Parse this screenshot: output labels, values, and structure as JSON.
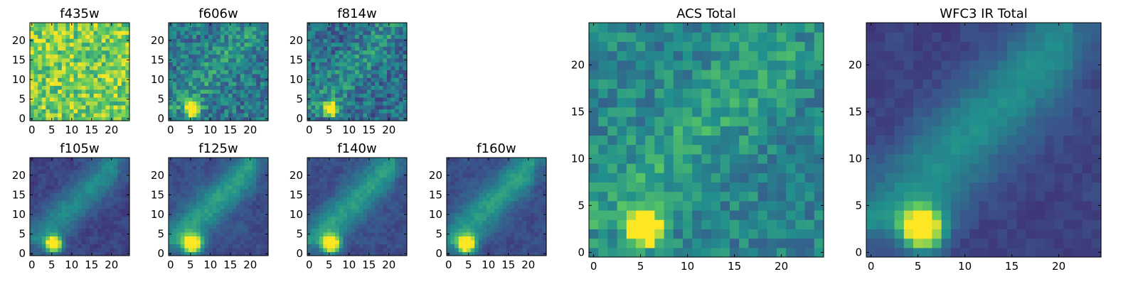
{
  "figure": {
    "colormap": "viridis",
    "palette": [
      "#440154",
      "#3b528b",
      "#21908d",
      "#5dc962",
      "#fde725"
    ],
    "axis_color": "#000000"
  },
  "chart_data": [
    {
      "type": "heatmap",
      "title": "f435w",
      "size": 25,
      "xlim": [
        0,
        24
      ],
      "ylim": [
        0,
        24
      ],
      "xticks": [
        0,
        5,
        10,
        15,
        20
      ],
      "yticks": [
        0,
        5,
        10,
        15,
        20
      ],
      "tick_labels_x": [
        "0",
        "5",
        "10",
        "15",
        "20"
      ],
      "tick_labels_y": [
        "0",
        "5",
        "10",
        "15",
        "20"
      ],
      "background_level": 0.78,
      "noise_level": 0.22,
      "diffuse_level": 0.0,
      "blur": 0,
      "sources": [],
      "seed": 11
    },
    {
      "type": "heatmap",
      "title": "f606w",
      "size": 25,
      "xlim": [
        0,
        24
      ],
      "ylim": [
        0,
        24
      ],
      "xticks": [
        0,
        5,
        10,
        15,
        20
      ],
      "yticks": [
        0,
        5,
        10,
        15,
        20
      ],
      "tick_labels_x": [
        "0",
        "5",
        "10",
        "15",
        "20"
      ],
      "tick_labels_y": [
        "0",
        "5",
        "10",
        "15",
        "20"
      ],
      "background_level": 0.4,
      "noise_level": 0.18,
      "diffuse_level": 0.14,
      "blur": 0,
      "sources": [
        {
          "x": 5.5,
          "y": 2.5,
          "amplitude": 1.0,
          "sigma": 1.2
        }
      ],
      "seed": 23
    },
    {
      "type": "heatmap",
      "title": "f814w",
      "size": 25,
      "xlim": [
        0,
        24
      ],
      "ylim": [
        0,
        24
      ],
      "xticks": [
        0,
        5,
        10,
        15,
        20
      ],
      "yticks": [
        0,
        5,
        10,
        15,
        20
      ],
      "tick_labels_x": [
        "0",
        "5",
        "10",
        "15",
        "20"
      ],
      "tick_labels_y": [
        "0",
        "5",
        "10",
        "15",
        "20"
      ],
      "background_level": 0.36,
      "noise_level": 0.18,
      "diffuse_level": 0.14,
      "blur": 0,
      "sources": [
        {
          "x": 5.5,
          "y": 2.5,
          "amplitude": 1.0,
          "sigma": 1.2
        }
      ],
      "seed": 37
    },
    {
      "type": "heatmap",
      "title": "f105w",
      "size": 25,
      "xlim": [
        0,
        24
      ],
      "ylim": [
        0,
        24
      ],
      "xticks": [
        0,
        5,
        10,
        15,
        20
      ],
      "yticks": [
        0,
        5,
        10,
        15,
        20
      ],
      "tick_labels_x": [
        "0",
        "5",
        "10",
        "15",
        "20"
      ],
      "tick_labels_y": [
        "0",
        "5",
        "10",
        "15",
        "20"
      ],
      "background_level": 0.2,
      "noise_level": 0.08,
      "diffuse_level": 0.28,
      "blur": 1,
      "sources": [
        {
          "x": 5.5,
          "y": 2.5,
          "amplitude": 1.0,
          "sigma": 1.4
        }
      ],
      "seed": 41
    },
    {
      "type": "heatmap",
      "title": "f125w",
      "size": 25,
      "xlim": [
        0,
        24
      ],
      "ylim": [
        0,
        24
      ],
      "xticks": [
        0,
        5,
        10,
        15,
        20
      ],
      "yticks": [
        0,
        5,
        10,
        15,
        20
      ],
      "tick_labels_x": [
        "0",
        "5",
        "10",
        "15",
        "20"
      ],
      "tick_labels_y": [
        "0",
        "5",
        "10",
        "15",
        "20"
      ],
      "background_level": 0.24,
      "noise_level": 0.08,
      "diffuse_level": 0.32,
      "blur": 1,
      "sources": [
        {
          "x": 5.5,
          "y": 2.5,
          "amplitude": 1.0,
          "sigma": 1.6
        }
      ],
      "seed": 53
    },
    {
      "type": "heatmap",
      "title": "f140w",
      "size": 25,
      "xlim": [
        0,
        24
      ],
      "ylim": [
        0,
        24
      ],
      "xticks": [
        0,
        5,
        10,
        15,
        20
      ],
      "yticks": [
        0,
        5,
        10,
        15,
        20
      ],
      "tick_labels_x": [
        "0",
        "5",
        "10",
        "15",
        "20"
      ],
      "tick_labels_y": [
        "0",
        "5",
        "10",
        "15",
        "20"
      ],
      "background_level": 0.24,
      "noise_level": 0.08,
      "diffuse_level": 0.32,
      "blur": 1,
      "sources": [
        {
          "x": 5.5,
          "y": 2.5,
          "amplitude": 1.0,
          "sigma": 1.5
        }
      ],
      "seed": 67
    },
    {
      "type": "heatmap",
      "title": "f160w",
      "size": 25,
      "xlim": [
        0,
        24
      ],
      "ylim": [
        0,
        24
      ],
      "xticks": [
        0,
        5,
        10,
        15,
        20
      ],
      "yticks": [
        0,
        5,
        10,
        15,
        20
      ],
      "tick_labels_x": [
        "0",
        "5",
        "10",
        "15",
        "20"
      ],
      "tick_labels_y": [
        "0",
        "5",
        "10",
        "15",
        "20"
      ],
      "background_level": 0.24,
      "noise_level": 0.08,
      "diffuse_level": 0.32,
      "blur": 1,
      "sources": [
        {
          "x": 4.5,
          "y": 2.5,
          "amplitude": 1.0,
          "sigma": 1.5
        }
      ],
      "seed": 71
    },
    {
      "type": "heatmap",
      "title": "ACS Total",
      "size": 25,
      "xlim": [
        0,
        24
      ],
      "ylim": [
        0,
        24
      ],
      "xticks": [
        0,
        5,
        10,
        15,
        20
      ],
      "yticks": [
        0,
        5,
        10,
        15,
        20
      ],
      "tick_labels_x": [
        "0",
        "5",
        "10",
        "15",
        "20"
      ],
      "tick_labels_y": [
        "0",
        "5",
        "10",
        "15",
        "20"
      ],
      "background_level": 0.45,
      "noise_level": 0.14,
      "diffuse_level": 0.14,
      "blur": 0,
      "sources": [
        {
          "x": 5.5,
          "y": 2.5,
          "amplitude": 1.0,
          "sigma": 1.2
        }
      ],
      "seed": 83
    },
    {
      "type": "heatmap",
      "title": "WFC3 IR Total",
      "size": 25,
      "xlim": [
        0,
        24
      ],
      "ylim": [
        0,
        24
      ],
      "xticks": [
        0,
        5,
        10,
        15,
        20
      ],
      "yticks": [
        0,
        5,
        10,
        15,
        20
      ],
      "tick_labels_x": [
        "0",
        "5",
        "10",
        "15",
        "20"
      ],
      "tick_labels_y": [
        "0",
        "5",
        "10",
        "15",
        "20"
      ],
      "background_level": 0.2,
      "noise_level": 0.06,
      "diffuse_level": 0.3,
      "blur": 1,
      "sources": [
        {
          "x": 5.5,
          "y": 2.5,
          "amplitude": 1.0,
          "sigma": 1.5
        }
      ],
      "seed": 97
    }
  ]
}
